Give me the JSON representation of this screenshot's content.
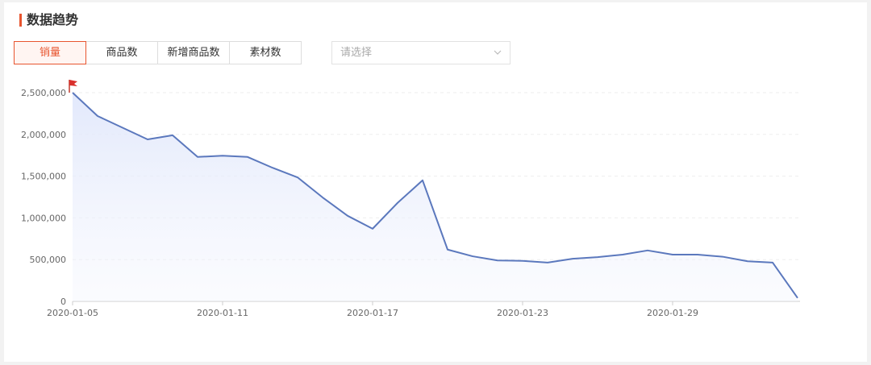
{
  "header": {
    "title": "数据趋势"
  },
  "tabs": [
    "销量",
    "商品数",
    "新增商品数",
    "素材数"
  ],
  "select": {
    "placeholder": "请选择"
  },
  "chart_data": {
    "type": "line",
    "categories": [
      "2020-01-05",
      null,
      null,
      null,
      null,
      null,
      "2020-01-11",
      null,
      null,
      null,
      null,
      null,
      "2020-01-17",
      null,
      null,
      null,
      null,
      null,
      "2020-01-23",
      null,
      null,
      null,
      null,
      null,
      "2020-01-29",
      null,
      null,
      null,
      null,
      null
    ],
    "values": [
      2500000,
      2220000,
      2080000,
      1940000,
      1990000,
      1730000,
      1745000,
      1730000,
      1600000,
      1485000,
      1245000,
      1025000,
      870000,
      1180000,
      1450000,
      620000,
      540000,
      490000,
      485000,
      465000,
      510000,
      530000,
      560000,
      610000,
      560000,
      560000,
      535000,
      480000,
      465000,
      40000
    ],
    "color": "#5b78bd",
    "ylim": [
      0,
      2500000
    ],
    "yticks": [
      0,
      {
        "value": 500000,
        "label": "500,000"
      },
      {
        "value": 1000000,
        "label": "1,000,000"
      },
      {
        "value": 1500000,
        "label": "1,500,000"
      },
      {
        "value": 2000000,
        "label": "2,000,000"
      },
      {
        "value": 2500000,
        "label": "2,500,000"
      }
    ],
    "grid": true
  }
}
